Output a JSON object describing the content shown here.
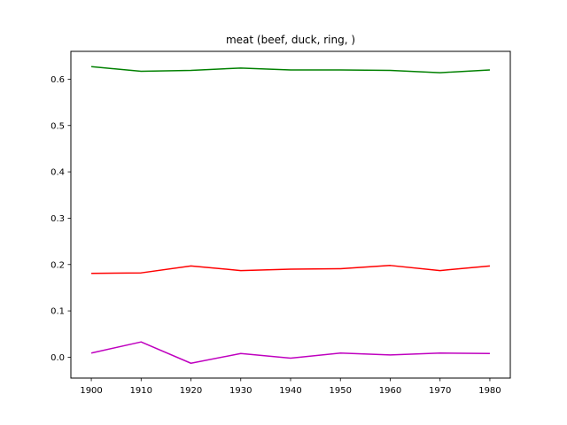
{
  "chart_data": {
    "type": "line",
    "title": "meat (beef, duck, ring, )",
    "xlabel": "",
    "ylabel": "",
    "x": [
      1900,
      1910,
      1920,
      1930,
      1940,
      1950,
      1960,
      1970,
      1980
    ],
    "xlim": [
      1895.9,
      1984.1
    ],
    "ylim": [
      -0.045,
      0.66
    ],
    "x_ticks": [
      "1900",
      "1910",
      "1920",
      "1930",
      "1940",
      "1950",
      "1960",
      "1970",
      "1980"
    ],
    "y_ticks": [
      "0.0",
      "0.1",
      "0.2",
      "0.3",
      "0.4",
      "0.5",
      "0.6"
    ],
    "grid": false,
    "series": [
      {
        "color": "#008000",
        "values": [
          0.627,
          0.617,
          0.619,
          0.624,
          0.62,
          0.62,
          0.619,
          0.614,
          0.62
        ]
      },
      {
        "color": "#ff0000",
        "values": [
          0.181,
          0.182,
          0.197,
          0.187,
          0.19,
          0.191,
          0.198,
          0.187,
          0.197
        ]
      },
      {
        "color": "#bf00bf",
        "values": [
          0.009,
          0.033,
          -0.013,
          0.008,
          -0.002,
          0.009,
          0.005,
          0.009,
          0.008
        ]
      }
    ]
  }
}
